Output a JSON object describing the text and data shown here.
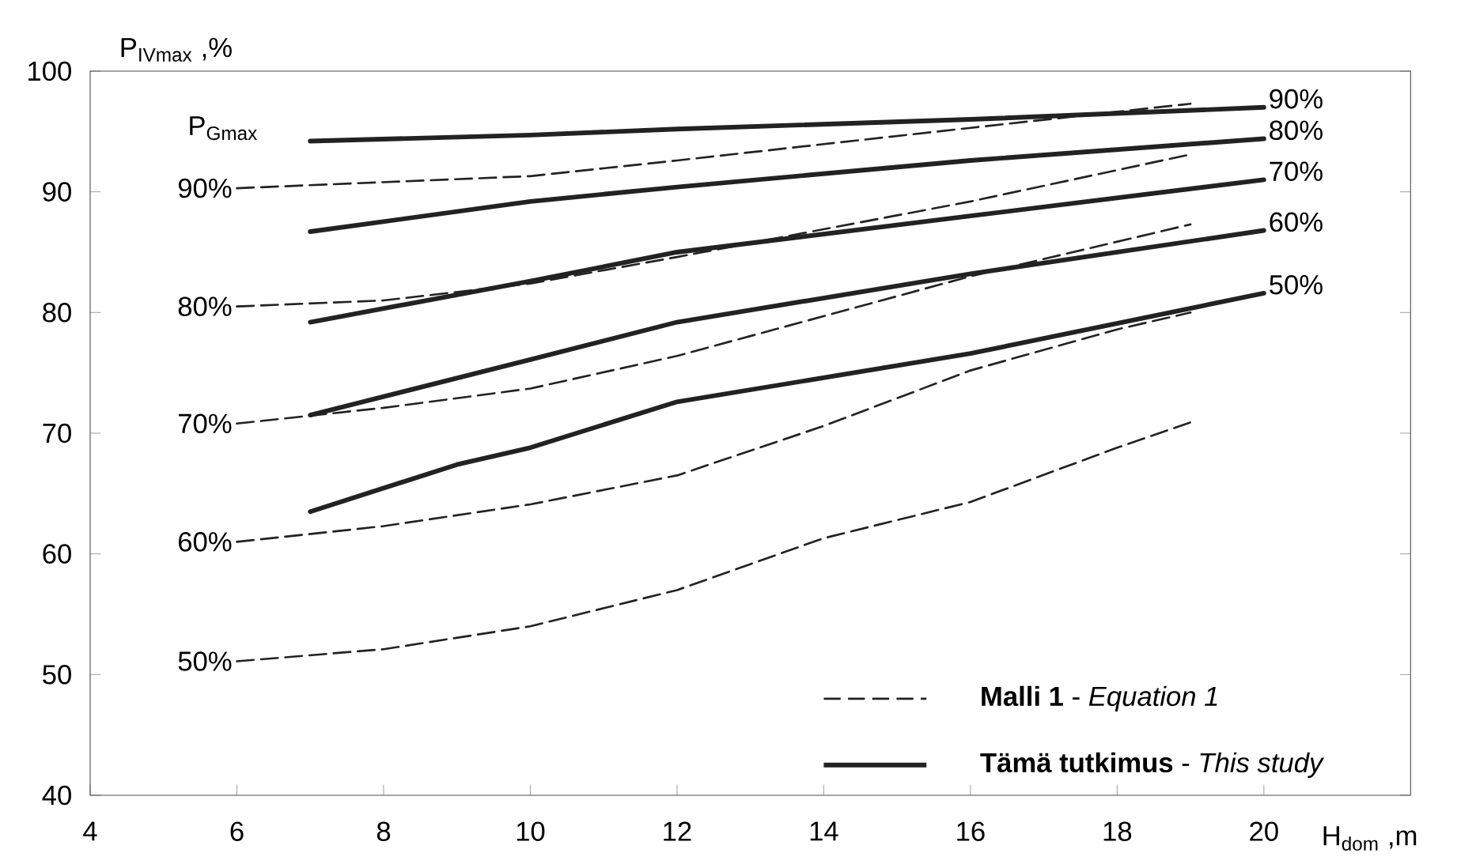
{
  "chart_data": {
    "type": "line",
    "xlabel": "H$_{dom}$ ,m",
    "ylabel": "P$_{IVmax}$ ,%",
    "xlim": [
      4,
      22
    ],
    "ylim": [
      40,
      100
    ],
    "xticks": [
      4,
      6,
      8,
      10,
      12,
      14,
      16,
      18,
      20
    ],
    "yticks": [
      40,
      50,
      60,
      70,
      80,
      90,
      100
    ],
    "annotations": [
      "P$_{Gmax}$",
      "**Malli 1** - *Equation 1*",
      "**Tämä tutkimus** - *This study*"
    ],
    "series": [
      {
        "name": "90%",
        "color": "#222222",
        "line_style": "dashed",
        "x": [
          6,
          10,
          12,
          16,
          19
        ],
        "values": [
          90.3,
          91.3,
          92.6,
          95.3,
          97.3
        ]
      },
      {
        "name": "80%",
        "color": "#222222",
        "line_style": "dashed",
        "x": [
          6,
          8,
          10,
          12,
          16,
          19
        ],
        "values": [
          80.5,
          81.0,
          82.4,
          84.6,
          89.2,
          93.1
        ]
      },
      {
        "name": "70%",
        "color": "#222222",
        "line_style": "dashed",
        "x": [
          6,
          8,
          10,
          12,
          16,
          19
        ],
        "values": [
          70.8,
          72.1,
          73.7,
          76.4,
          83.0,
          87.3
        ]
      },
      {
        "name": "60%",
        "color": "#222222",
        "line_style": "dashed",
        "x": [
          6,
          8,
          10,
          12,
          14,
          16,
          18,
          19
        ],
        "values": [
          61.0,
          62.3,
          64.1,
          66.5,
          70.6,
          75.2,
          78.6,
          80.0
        ]
      },
      {
        "name": "50%",
        "color": "#222222",
        "line_style": "dashed",
        "x": [
          6,
          8,
          10,
          12,
          14,
          16,
          18,
          19
        ],
        "values": [
          51.1,
          52.1,
          54.0,
          57.0,
          61.3,
          64.3,
          68.8,
          70.9
        ]
      },
      {
        "name": "90%",
        "color": "#222222",
        "line_style": "solid",
        "x": [
          7,
          10,
          12,
          16,
          20
        ],
        "values": [
          94.2,
          94.7,
          95.2,
          96.0,
          97.0
        ]
      },
      {
        "name": "80%",
        "color": "#222222",
        "line_style": "solid",
        "x": [
          7,
          10,
          12,
          16,
          20
        ],
        "values": [
          86.7,
          89.2,
          90.4,
          92.6,
          94.4
        ]
      },
      {
        "name": "70%",
        "color": "#222222",
        "line_style": "solid",
        "x": [
          7,
          10,
          12,
          16,
          20
        ],
        "values": [
          79.2,
          82.6,
          85.0,
          88.0,
          91.0
        ]
      },
      {
        "name": "60%",
        "color": "#222222",
        "line_style": "solid",
        "x": [
          7,
          10,
          12,
          16,
          20
        ],
        "values": [
          71.5,
          76.1,
          79.2,
          83.2,
          86.8
        ]
      },
      {
        "name": "50%",
        "color": "#222222",
        "line_style": "solid",
        "x": [
          7,
          9,
          10,
          12,
          16,
          20
        ],
        "values": [
          63.5,
          67.4,
          68.8,
          72.6,
          76.6,
          81.6
        ]
      }
    ]
  }
}
